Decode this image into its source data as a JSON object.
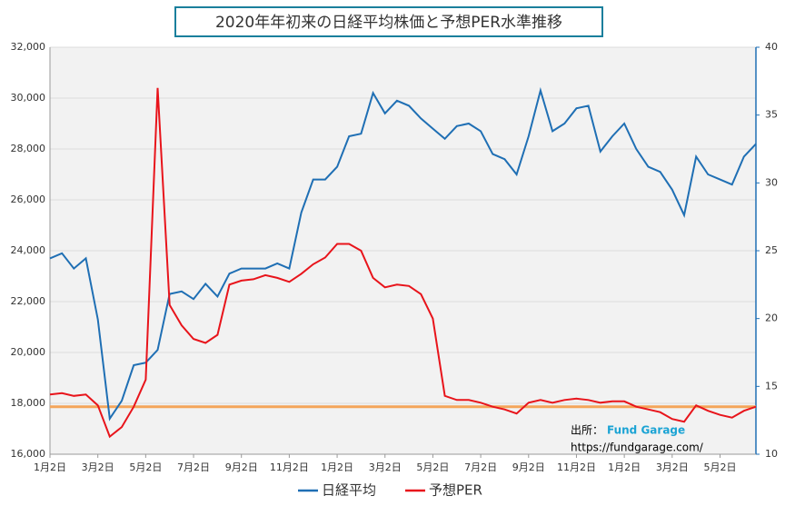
{
  "chart_data": {
    "type": "line",
    "title": "2020年年初来の日経平均株価と予想PER水準推移",
    "categories": [
      "1月2日",
      null,
      null,
      null,
      "3月2日",
      null,
      null,
      null,
      "5月2日",
      null,
      null,
      null,
      "7月2日",
      null,
      null,
      null,
      "9月2日",
      null,
      null,
      null,
      "11月2日",
      null,
      null,
      null,
      "1月2日",
      null,
      null,
      null,
      "3月2日",
      null,
      null,
      null,
      "5月2日",
      null,
      null,
      null,
      "7月2日",
      null,
      null,
      null,
      "9月2日",
      null,
      null,
      null,
      "11月2日",
      null,
      null,
      null,
      "1月2日",
      null,
      null,
      null,
      "3月2日",
      null,
      null,
      null,
      "5月2日",
      null,
      null,
      null
    ],
    "series": [
      {
        "name": "日経平均",
        "color": "#1f6fb4",
        "axis": "y",
        "values": [
          23700,
          23900,
          23300,
          23700,
          21300,
          17400,
          18100,
          19500,
          19600,
          20100,
          22300,
          22400,
          22100,
          22700,
          22200,
          23100,
          23300,
          23300,
          23300,
          23500,
          23300,
          25500,
          26800,
          26800,
          27300,
          28500,
          28600,
          30200,
          29400,
          29900,
          29700,
          29200,
          28800,
          28400,
          28900,
          29000,
          28700,
          27800,
          27600,
          27000,
          28500,
          30300,
          28700,
          29000,
          29600,
          29700,
          27900,
          28500,
          29000,
          28000,
          27300,
          27100,
          26400,
          25400,
          27700,
          27000,
          26800,
          26600,
          27700,
          28200
        ]
      },
      {
        "name": "予想PER",
        "color": "#e8141b",
        "axis": "y2",
        "values": [
          14.4,
          14.5,
          14.3,
          14.4,
          13.6,
          11.3,
          12.0,
          13.5,
          15.5,
          37.0,
          21.0,
          19.5,
          18.5,
          18.2,
          18.8,
          22.5,
          22.8,
          22.9,
          23.2,
          23.0,
          22.7,
          23.3,
          24.0,
          24.5,
          25.5,
          25.5,
          25.0,
          23.0,
          22.3,
          22.5,
          22.4,
          21.8,
          20.0,
          14.3,
          14.0,
          14.0,
          13.8,
          13.5,
          13.3,
          13.0,
          13.8,
          14.0,
          13.8,
          14.0,
          14.1,
          14.0,
          13.8,
          13.9,
          13.9,
          13.5,
          13.3,
          13.1,
          12.6,
          12.4,
          13.6,
          13.2,
          12.9,
          12.7,
          13.2,
          13.5
        ]
      }
    ],
    "reference_line": {
      "value": 13.5,
      "axis": "y2",
      "color": "#f4a55a"
    },
    "ylim": [
      16000,
      32000
    ],
    "yticks": [
      {
        "value": 16000,
        "label": "16,000"
      },
      {
        "value": 18000,
        "label": "18,000"
      },
      {
        "value": 20000,
        "label": "20,000"
      },
      {
        "value": 22000,
        "label": "22,000"
      },
      {
        "value": 24000,
        "label": "24,000"
      },
      {
        "value": 26000,
        "label": "26,000"
      },
      {
        "value": 28000,
        "label": "28,000"
      },
      {
        "value": 30000,
        "label": "30,000"
      },
      {
        "value": 32000,
        "label": "32,000"
      }
    ],
    "y2lim": [
      10,
      40
    ],
    "y2ticks": [
      10,
      15,
      20,
      25,
      30,
      35,
      40
    ],
    "grid": true,
    "legend": "bottom",
    "source_label": "出所：",
    "source_name": "Fund Garage",
    "source_url": "https://fundgarage.com/"
  }
}
